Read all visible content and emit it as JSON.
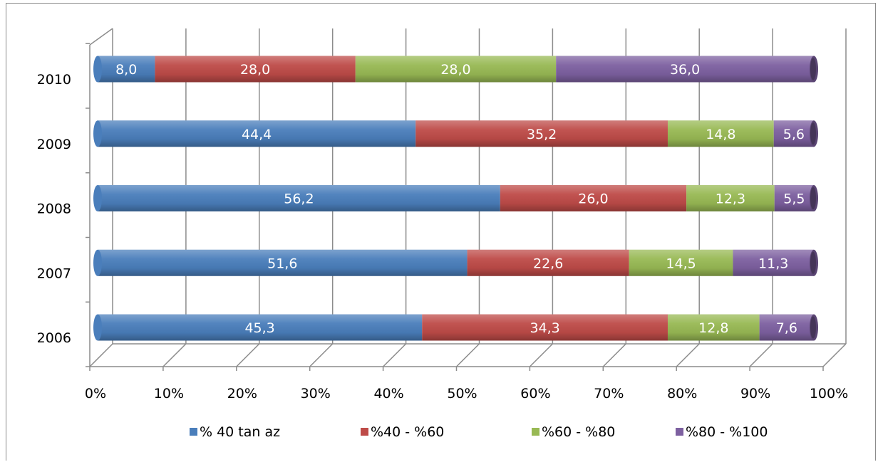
{
  "chart_data": {
    "type": "bar",
    "orientation": "horizontal",
    "stacked": "percent",
    "categories": [
      "2006",
      "2007",
      "2008",
      "2009",
      "2010"
    ],
    "series": [
      {
        "name": "% 40 tan az",
        "color": "#4a7ebb",
        "values": [
          45.3,
          51.6,
          56.2,
          44.4,
          8.0
        ],
        "labels": [
          "45,3",
          "51,6",
          "56,2",
          "44,4",
          "8,0"
        ]
      },
      {
        "name": "%40 - %60",
        "color": "#be4b48",
        "values": [
          34.3,
          22.6,
          26.0,
          35.2,
          28.0
        ],
        "labels": [
          "34,3",
          "22,6",
          "26,0",
          "35,2",
          "28,0"
        ]
      },
      {
        "name": "%60 - %80",
        "color": "#98b954",
        "values": [
          12.8,
          14.5,
          12.3,
          14.8,
          28.0
        ],
        "labels": [
          "12,8",
          "14,5",
          "12,3",
          "14,8",
          "28,0"
        ]
      },
      {
        "name": "%80 - %100",
        "color": "#7d60a0",
        "values": [
          7.6,
          11.3,
          5.5,
          5.6,
          36.0
        ],
        "labels": [
          "7,6",
          "11,3",
          "5,5",
          "5,6",
          "36,0"
        ]
      }
    ],
    "xlim": [
      0,
      100
    ],
    "x_ticks": [
      "0%",
      "10%",
      "20%",
      "30%",
      "40%",
      "50%",
      "60%",
      "70%",
      "80%",
      "90%",
      "100%"
    ],
    "grid": true,
    "legend_position": "bottom",
    "three_d": true
  }
}
